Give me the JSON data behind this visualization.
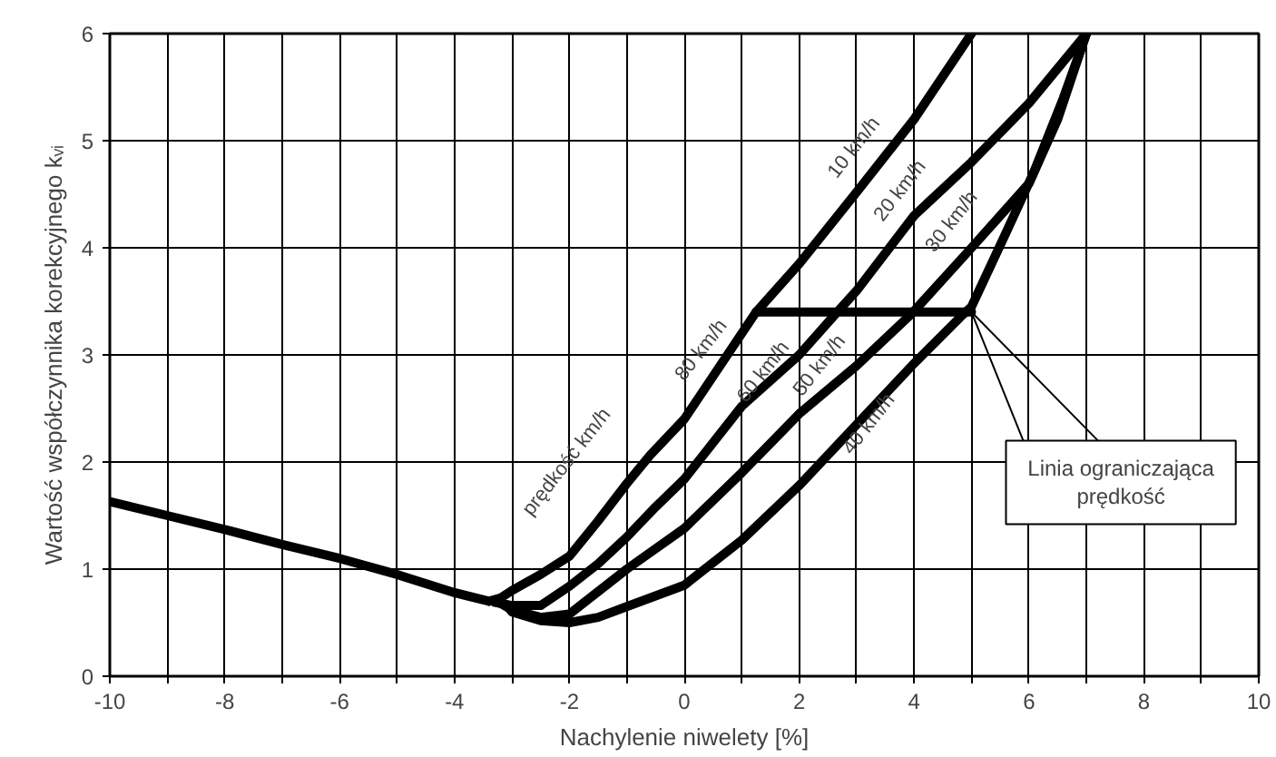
{
  "chart_data": {
    "type": "line",
    "xlabel": "Nachylenie niwelety [%]",
    "ylabel": "Wartość współczynnika korekcyjnego kᵥᵢ",
    "x": [
      -10,
      -9,
      -8,
      -7,
      -6,
      -5,
      -4,
      -3.4
    ],
    "series": [
      {
        "color": "#000000",
        "values": [
          1.63,
          1.5,
          1.37,
          1.23,
          1.1,
          0.95,
          0.78,
          0.7
        ]
      },
      {
        "color": "#000000",
        "x": [
          -3.4,
          -3.2,
          -3,
          -2.5,
          -2,
          -1.5,
          -1,
          -0.6,
          0,
          1.25,
          2,
          3,
          4,
          5
        ],
        "values": [
          0.7,
          0.73,
          0.8,
          0.95,
          1.12,
          1.45,
          1.8,
          2.06,
          2.4,
          3.4,
          3.85,
          4.52,
          5.2,
          6.0
        ]
      },
      {
        "color": "#000000",
        "x": [
          -3.3,
          -3,
          -2.5,
          -2,
          -1.5,
          -1,
          -0.5,
          0,
          1,
          2,
          2.63,
          3,
          4,
          5,
          6,
          7
        ],
        "values": [
          0.69,
          0.66,
          0.66,
          0.84,
          1.05,
          1.3,
          1.58,
          1.84,
          2.52,
          3.0,
          3.38,
          3.6,
          4.3,
          4.8,
          5.35,
          6.0
        ]
      },
      {
        "color": "#000000",
        "x": [
          -3.2,
          -3,
          -2.5,
          -2,
          -1,
          0,
          1,
          2,
          3,
          3.95,
          5,
          5.5,
          6,
          6.5,
          7
        ],
        "values": [
          0.68,
          0.62,
          0.55,
          0.58,
          1.0,
          1.38,
          1.9,
          2.45,
          2.9,
          3.38,
          4.0,
          4.3,
          4.6,
          5.2,
          6.0
        ]
      },
      {
        "color": "#000000",
        "x": [
          -3.1,
          -3,
          -2.5,
          -2,
          -1.5,
          -1,
          0,
          1,
          2,
          3,
          4,
          4.8,
          5.0,
          5.54,
          6.08,
          6.6,
          7
        ],
        "values": [
          0.67,
          0.6,
          0.52,
          0.5,
          0.55,
          0.65,
          0.85,
          1.27,
          1.78,
          2.35,
          2.92,
          3.35,
          3.45,
          4.07,
          4.7,
          5.4,
          6.0
        ]
      },
      {
        "color": "#000000",
        "x": [
          1.25,
          5
        ],
        "values": [
          3.4,
          3.4
        ]
      }
    ],
    "xlim": [
      -10,
      10
    ],
    "xticks": [
      -10,
      {
        "value": -9,
        "label": null
      },
      -8,
      {
        "value": -7,
        "label": null
      },
      -6,
      {
        "value": -5,
        "label": null
      },
      -4,
      {
        "value": -3,
        "label": null
      },
      -2,
      {
        "value": -1,
        "label": null
      },
      0,
      {
        "value": 1,
        "label": null
      },
      2,
      {
        "value": 3,
        "label": null
      },
      4,
      {
        "value": 5,
        "label": null
      },
      6,
      {
        "value": 7,
        "label": null
      },
      8,
      {
        "value": 9,
        "label": null
      },
      10
    ],
    "ylim": [
      0,
      6
    ],
    "yticks": [
      0,
      1,
      2,
      3,
      4,
      5,
      6
    ],
    "grid": true,
    "annotations": [
      "prędkość km/h",
      "10 km/h",
      "20 km/h",
      "30 km/h",
      "80 km/h",
      "60 km/h",
      "50 km/h",
      "40 km/h",
      {
        "text": "Linia ograniczająca\nprędkość",
        "x": 5,
        "y": 3.4
      }
    ]
  }
}
